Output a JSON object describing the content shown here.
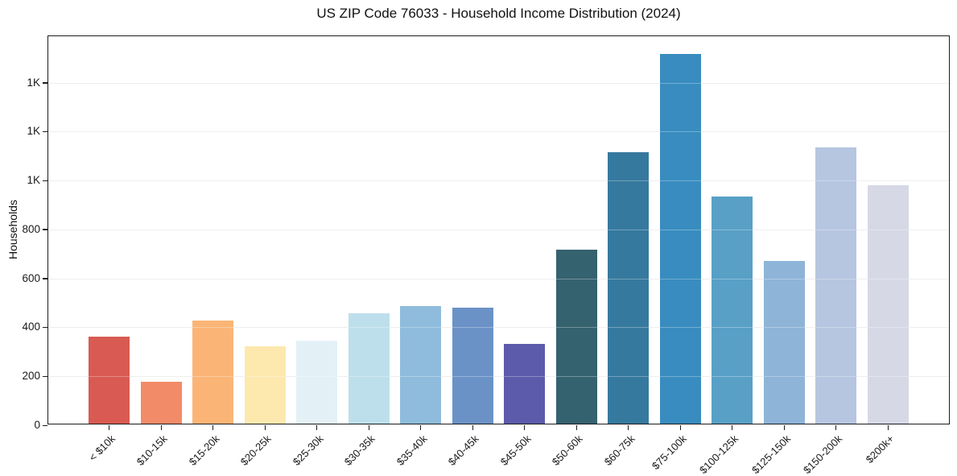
{
  "chart_data": {
    "type": "bar",
    "title": "US ZIP Code 76033 - Household Income Distribution (2024)",
    "xlabel": "",
    "ylabel": "Households",
    "categories": [
      "< $10k",
      "$10-15k",
      "$15-20k",
      "$20-25k",
      "$25-30k",
      "$30-35k",
      "$35-40k",
      "$40-45k",
      "$45-50k",
      "$50-60k",
      "$60-75k",
      "$75-100k",
      "$100-125k",
      "$125-150k",
      "$150-200k",
      "$200k+"
    ],
    "values": [
      355,
      170,
      420,
      315,
      340,
      450,
      480,
      475,
      325,
      710,
      1110,
      1510,
      930,
      665,
      1130,
      975
    ],
    "bar_colors": [
      "#d85a52",
      "#f28b68",
      "#fab576",
      "#fde8ae",
      "#e3f1f7",
      "#bddfeb",
      "#8fbcdc",
      "#6b92c7",
      "#5c5bab",
      "#35626f",
      "#36799e",
      "#388cbf",
      "#58a0c6",
      "#8eb4d7",
      "#b6c6e0",
      "#d7d8e6"
    ],
    "ylim": [
      0,
      1590
    ],
    "yticks": [
      {
        "value": 0,
        "label": "0"
      },
      {
        "value": 200,
        "label": "200"
      },
      {
        "value": 400,
        "label": "400"
      },
      {
        "value": 600,
        "label": "600"
      },
      {
        "value": 800,
        "label": "800"
      },
      {
        "value": 1000,
        "label": "1K"
      },
      {
        "value": 1200,
        "label": "1K"
      },
      {
        "value": 1400,
        "label": "1K"
      }
    ],
    "grid": "horizontal",
    "legend": "none",
    "colors": {
      "background": "#ffffff",
      "spine": "#1c1c1c",
      "grid": "#e7e7e7",
      "tick_text": "#1a1a1a",
      "title_text": "#111111"
    }
  }
}
